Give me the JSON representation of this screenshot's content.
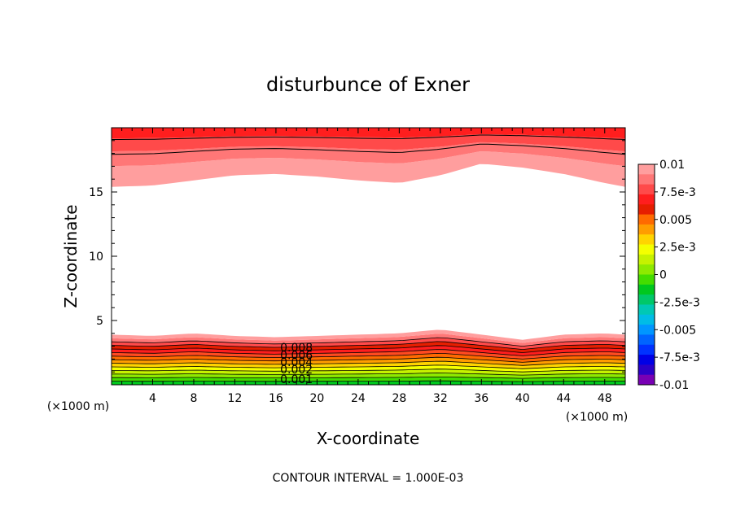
{
  "chart_data": {
    "type": "heatmap",
    "title": "disturbunce of Exner",
    "xlabel": "X-coordinate",
    "ylabel": "Z-coordinate",
    "x_unit_left": "(×1000 m)",
    "x_unit_right": "(×1000 m)",
    "footnote": "CONTOUR INTERVAL = 1.000E-03",
    "xlim": [
      0,
      50
    ],
    "ylim": [
      0,
      20
    ],
    "xticks": [
      4,
      8,
      12,
      16,
      20,
      24,
      28,
      32,
      36,
      40,
      44,
      48
    ],
    "yticks": [
      5,
      10,
      15
    ],
    "colorbar": {
      "labels": [
        "0.01",
        "7.5e-3",
        "0.005",
        "2.5e-3",
        "0",
        "-2.5e-3",
        "-0.005",
        "-7.5e-3",
        "-0.01"
      ],
      "min": -0.01,
      "max": 0.01,
      "colors_top_to_bottom": [
        "#ff9e9e",
        "#ff7777",
        "#ff4a4a",
        "#ff1e1e",
        "#e61e00",
        "#ff6a00",
        "#ff9d00",
        "#ffd400",
        "#f4ff00",
        "#c6f200",
        "#8eea00",
        "#44dd00",
        "#00c81e",
        "#00c869",
        "#00c8b4",
        "#00bce6",
        "#0096ff",
        "#0064ff",
        "#0032ff",
        "#0000e6",
        "#2b00c8",
        "#7800b4"
      ]
    },
    "upper_boundary_x": [
      0,
      4,
      8,
      12,
      16,
      20,
      24,
      28,
      32,
      36,
      40,
      44,
      48,
      50
    ],
    "upper_boundary_z": [
      15.4,
      15.5,
      15.9,
      16.3,
      16.4,
      16.2,
      15.9,
      15.7,
      16.3,
      17.2,
      16.9,
      16.4,
      15.7,
      15.4
    ],
    "lower_boundary_x": [
      0,
      4,
      8,
      12,
      16,
      20,
      24,
      28,
      32,
      36,
      40,
      44,
      48,
      50
    ],
    "lower_boundary_z": [
      3.9,
      3.8,
      4.0,
      3.8,
      3.7,
      3.8,
      3.9,
      4.0,
      4.3,
      3.9,
      3.5,
      3.9,
      4.0,
      3.9
    ],
    "contour_labels": [
      "0.008",
      "0.006",
      "0.004",
      "0.002",
      "0.001"
    ]
  }
}
